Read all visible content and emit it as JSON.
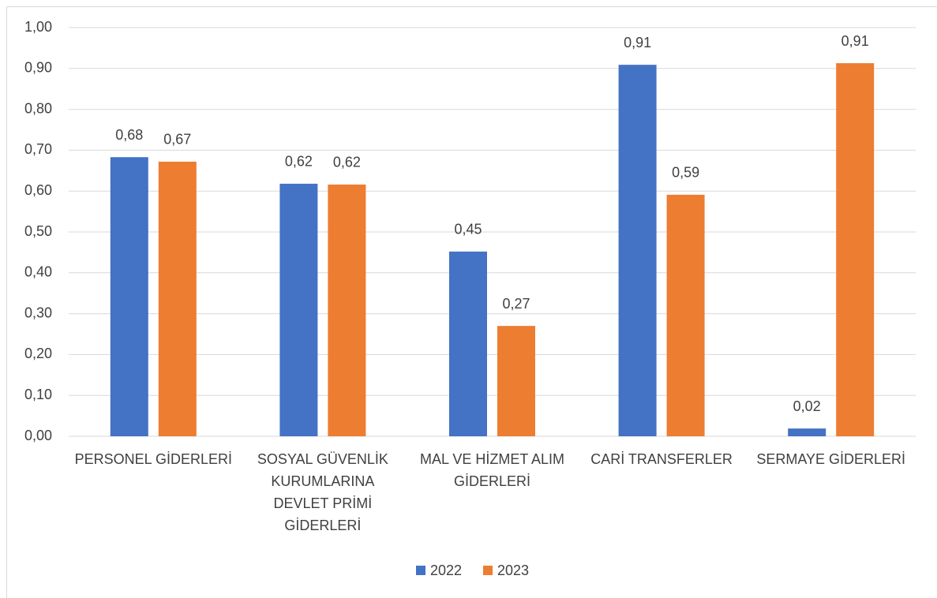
{
  "chart_data": {
    "type": "bar",
    "categories": [
      "PERSONEL GİDERLERİ",
      "SOSYAL GÜVENLİK KURUMLARINA DEVLET PRİMİ GİDERLERİ",
      "MAL VE HİZMET ALIM GİDERLERİ",
      "CARİ TRANSFERLER",
      "SERMAYE GİDERLERİ"
    ],
    "series": [
      {
        "name": "2022",
        "color": "#4472c4",
        "values": [
          0.683,
          0.618,
          0.452,
          0.909,
          0.019
        ],
        "value_labels": [
          "0,68",
          "0,62",
          "0,45",
          "0,91",
          "0,02"
        ]
      },
      {
        "name": "2023",
        "color": "#ed7d31",
        "values": [
          0.672,
          0.616,
          0.27,
          0.591,
          0.913
        ],
        "value_labels": [
          "0,67",
          "0,62",
          "0,27",
          "0,59",
          "0,91"
        ]
      }
    ],
    "ylim": [
      0,
      1
    ],
    "yticks": [
      {
        "value": 0,
        "label": "0,00"
      },
      {
        "value": 0.1,
        "label": "0,10"
      },
      {
        "value": 0.2,
        "label": "0,20"
      },
      {
        "value": 0.3,
        "label": "0,30"
      },
      {
        "value": 0.4,
        "label": "0,40"
      },
      {
        "value": 0.5,
        "label": "0,50"
      },
      {
        "value": 0.6,
        "label": "0,60"
      },
      {
        "value": 0.7,
        "label": "0,70"
      },
      {
        "value": 0.8,
        "label": "0,80"
      },
      {
        "value": 0.9,
        "label": "0,90"
      },
      {
        "value": 1,
        "label": "1,00"
      }
    ],
    "grid": true,
    "legend": "bottom"
  }
}
